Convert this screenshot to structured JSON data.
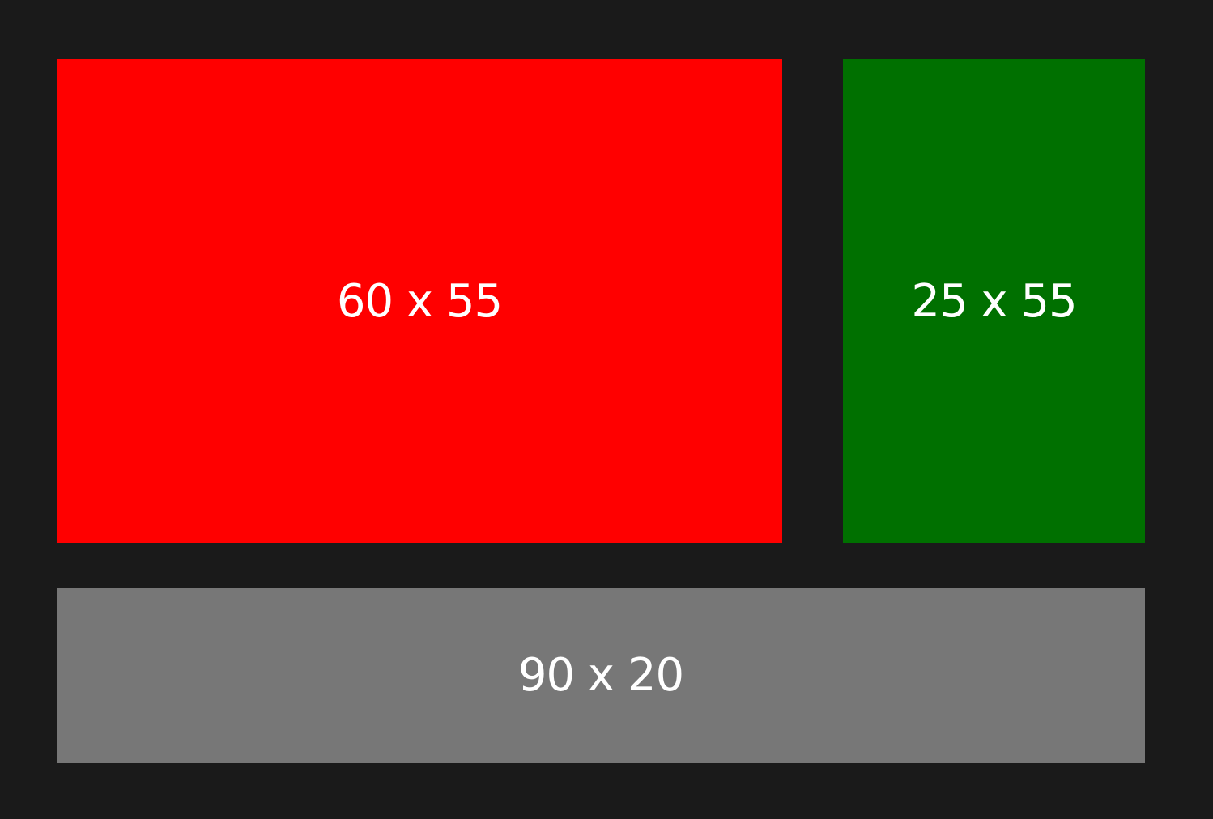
{
  "background": "#1a1a1a",
  "tiles": [
    {
      "label": "60 x 55",
      "color": "#ff0000"
    },
    {
      "label": "25 x 55",
      "color": "#007000"
    },
    {
      "label": "90 x 20",
      "color": "#777777"
    }
  ]
}
